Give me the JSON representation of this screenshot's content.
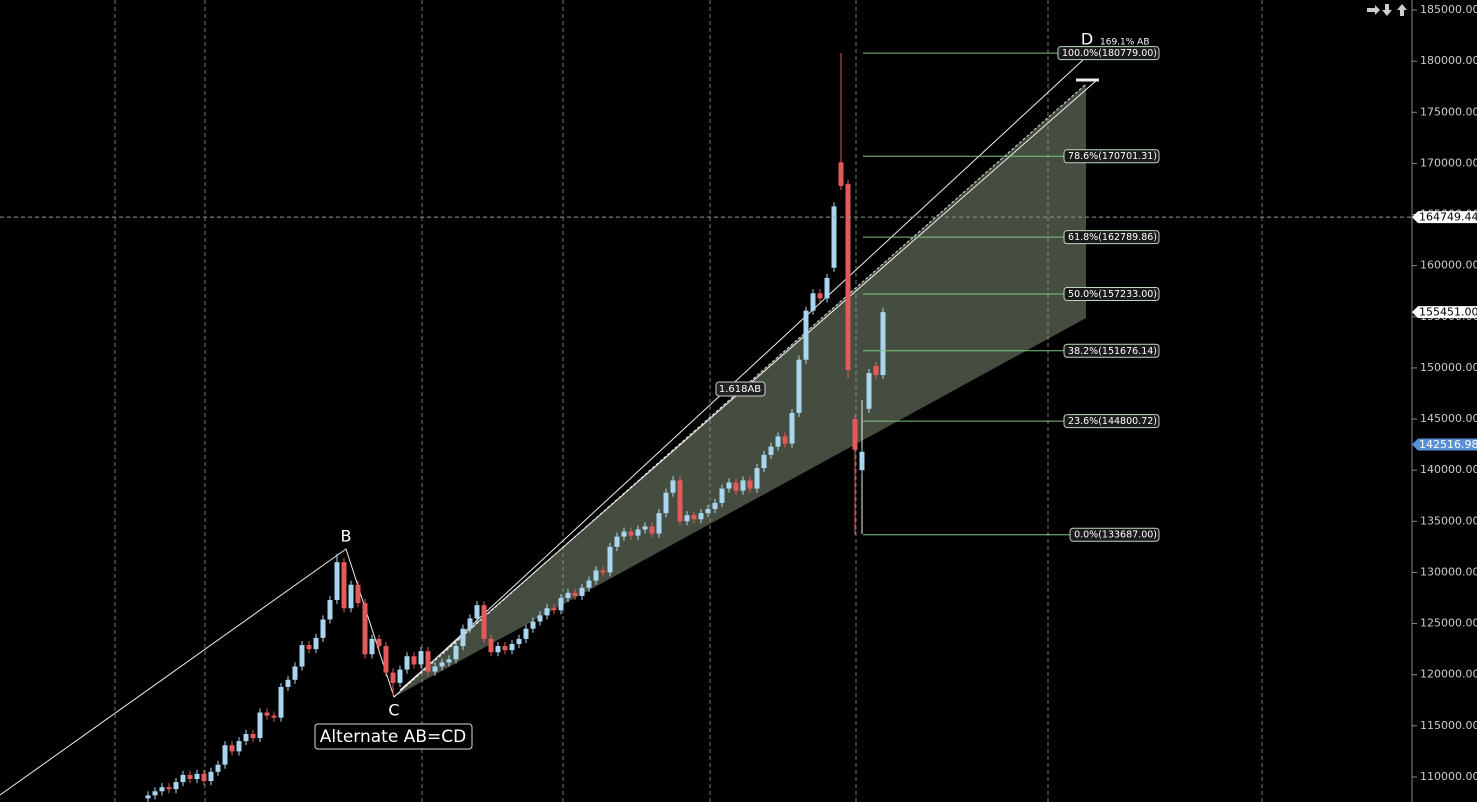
{
  "chart_data": {
    "type": "candlestick",
    "ylim": [
      107550,
      185980
    ],
    "yticks": [
      {
        "value": 110000,
        "label": "110000.00"
      },
      {
        "value": 115000,
        "label": "115000.00"
      },
      {
        "value": 120000,
        "label": "120000.00"
      },
      {
        "value": 125000,
        "label": "125000.00"
      },
      {
        "value": 130000,
        "label": "130000.00"
      },
      {
        "value": 135000,
        "label": "135000.00"
      },
      {
        "value": 140000,
        "label": "140000.00"
      },
      {
        "value": 145000,
        "label": "145000.00"
      },
      {
        "value": 150000,
        "label": "150000.00"
      },
      {
        "value": 155000,
        "label": "155000.00"
      },
      {
        "value": 160000,
        "label": "160000.00"
      },
      {
        "value": 165000,
        "label": "165000.00"
      },
      {
        "value": 170000,
        "label": "170000.00"
      },
      {
        "value": 175000,
        "label": "175000.00"
      },
      {
        "value": 180000,
        "label": "180000.00"
      },
      {
        "value": 185000,
        "label": "185000.00"
      }
    ],
    "up_color": "#a9d6ee",
    "down_color": "#e35a5b",
    "open": [
      107900,
      108200,
      108600,
      109000,
      108800,
      109500,
      110200,
      109800,
      110300,
      109600,
      110500,
      111200,
      113100,
      112500,
      113500,
      114200,
      113800,
      116300,
      116000,
      115800,
      118800,
      119500,
      120800,
      122900,
      122500,
      123600,
      125400,
      127300,
      131000,
      126500,
      128800,
      127000,
      122000,
      123500,
      122800,
      120200,
      119200,
      120500,
      121800,
      121000,
      122300,
      120300,
      120800,
      121200,
      121500,
      122800,
      124500,
      125500,
      126800,
      123500,
      122200,
      122800,
      122400,
      123000,
      123500,
      124500,
      125200,
      125800,
      126500,
      126300,
      127500,
      128000,
      127700,
      128500,
      129200,
      130200,
      130000,
      132500,
      133500,
      134000,
      133600,
      134200,
      134500,
      133800,
      135800,
      137800,
      139000,
      135000,
      135600,
      135200,
      135800,
      136200,
      136800,
      138200,
      138800,
      138000,
      139000,
      138200,
      140200,
      141500,
      142300,
      143300,
      142600,
      145600,
      150800,
      155600,
      157300,
      156800,
      159800,
      170100,
      168000,
      145000,
      140000,
      146000,
      150200,
      149300
    ],
    "high": [
      108600,
      109000,
      109400,
      109400,
      109900,
      110600,
      110600,
      110700,
      110700,
      110900,
      111600,
      113500,
      113500,
      113900,
      114600,
      114600,
      116700,
      116700,
      116400,
      119200,
      119900,
      121200,
      123300,
      123300,
      124000,
      125800,
      127700,
      131800,
      131400,
      129200,
      129200,
      127400,
      123900,
      123900,
      123200,
      120600,
      120900,
      122200,
      122200,
      122700,
      122700,
      121200,
      121600,
      121900,
      123200,
      124900,
      125900,
      127200,
      127200,
      123900,
      123200,
      123200,
      123400,
      123900,
      124900,
      125600,
      126200,
      126900,
      126900,
      127900,
      128400,
      128400,
      128900,
      129600,
      130600,
      130600,
      132900,
      133900,
      134400,
      134400,
      134600,
      134900,
      134900,
      136200,
      138200,
      139400,
      139400,
      136000,
      136000,
      136200,
      136600,
      137200,
      138600,
      139200,
      139200,
      139400,
      139400,
      140600,
      141900,
      142700,
      143700,
      143700,
      146000,
      151200,
      156000,
      157700,
      157700,
      159200,
      166200,
      180779,
      168400,
      145400,
      142200,
      149900,
      150600,
      155900
    ],
    "low": [
      107500,
      107800,
      108200,
      108400,
      108400,
      109100,
      109400,
      109400,
      109200,
      109200,
      110100,
      110800,
      112100,
      112100,
      113100,
      113400,
      113400,
      115600,
      115400,
      115400,
      118400,
      119100,
      120400,
      122100,
      122100,
      123200,
      125000,
      126900,
      126100,
      126100,
      126600,
      121600,
      121600,
      122400,
      119800,
      118000,
      118800,
      120100,
      120600,
      120600,
      119900,
      119900,
      120400,
      120800,
      121100,
      122400,
      124100,
      125100,
      123100,
      121800,
      121800,
      122000,
      122000,
      122600,
      123100,
      124100,
      124800,
      125400,
      125900,
      125900,
      127100,
      127300,
      127300,
      128100,
      128800,
      129600,
      129600,
      132100,
      133100,
      133200,
      133200,
      133800,
      133400,
      133400,
      135400,
      137400,
      134600,
      134600,
      134800,
      134800,
      135400,
      135800,
      136400,
      137800,
      137600,
      137600,
      137800,
      137800,
      139800,
      141100,
      141900,
      142200,
      142200,
      145200,
      150400,
      155200,
      156400,
      156400,
      159400,
      167400,
      149000,
      133687,
      139600,
      145600,
      148900,
      148900
    ],
    "close": [
      108200,
      108600,
      109000,
      108800,
      109500,
      110200,
      109800,
      110300,
      109600,
      110500,
      111200,
      113100,
      112500,
      113500,
      114200,
      113800,
      116300,
      116000,
      115800,
      118800,
      119500,
      120800,
      122900,
      122500,
      123600,
      125400,
      127300,
      131000,
      126500,
      128800,
      127000,
      122000,
      123500,
      122800,
      120200,
      119200,
      120500,
      121800,
      121000,
      122300,
      120300,
      120800,
      121200,
      121500,
      122800,
      124500,
      125500,
      126800,
      123500,
      122200,
      122800,
      122400,
      123000,
      123500,
      124500,
      125200,
      125800,
      126500,
      126300,
      127500,
      128000,
      127700,
      128500,
      129200,
      130200,
      130000,
      132500,
      133500,
      134000,
      133600,
      134200,
      134500,
      133800,
      135800,
      137800,
      139000,
      135000,
      135600,
      135200,
      135800,
      136200,
      136800,
      138200,
      138800,
      138000,
      139000,
      138200,
      140200,
      141500,
      142300,
      143300,
      142600,
      145600,
      150800,
      155600,
      157300,
      156800,
      158800,
      165800,
      167800,
      149800,
      142000,
      141800,
      149500,
      149300,
      155451
    ],
    "fib_levels": [
      {
        "value": 180779,
        "label": "100.0%(180779.00)"
      },
      {
        "value": 170701.31,
        "label": "78.6%(170701.31)"
      },
      {
        "value": 162789.86,
        "label": "61.8%(162789.86)"
      },
      {
        "value": 157233,
        "label": "50.0%(157233.00)"
      },
      {
        "value": 151676.14,
        "label": "38.2%(151676.14)"
      },
      {
        "value": 144800.72,
        "label": "23.6%(144800.72)"
      },
      {
        "value": 133687,
        "label": "0.0%(133687.00)"
      }
    ],
    "price_tags": [
      {
        "value": 164749.44,
        "label": "164749.44",
        "color": "#ffffff",
        "text_color": "#000000"
      },
      {
        "value": 155451,
        "label": "155451.00",
        "color": "#ffffff",
        "text_color": "#000000"
      },
      {
        "value": 142516.98,
        "label": "142516.98",
        "color": "#5a8fd8",
        "text_color": "#ffffff"
      }
    ],
    "annotations": {
      "b": "B",
      "c": "C",
      "d": "D",
      "pattern": "Alternate AB=CD",
      "ratio": "1.618AB",
      "extension": "169.1% AB"
    }
  }
}
